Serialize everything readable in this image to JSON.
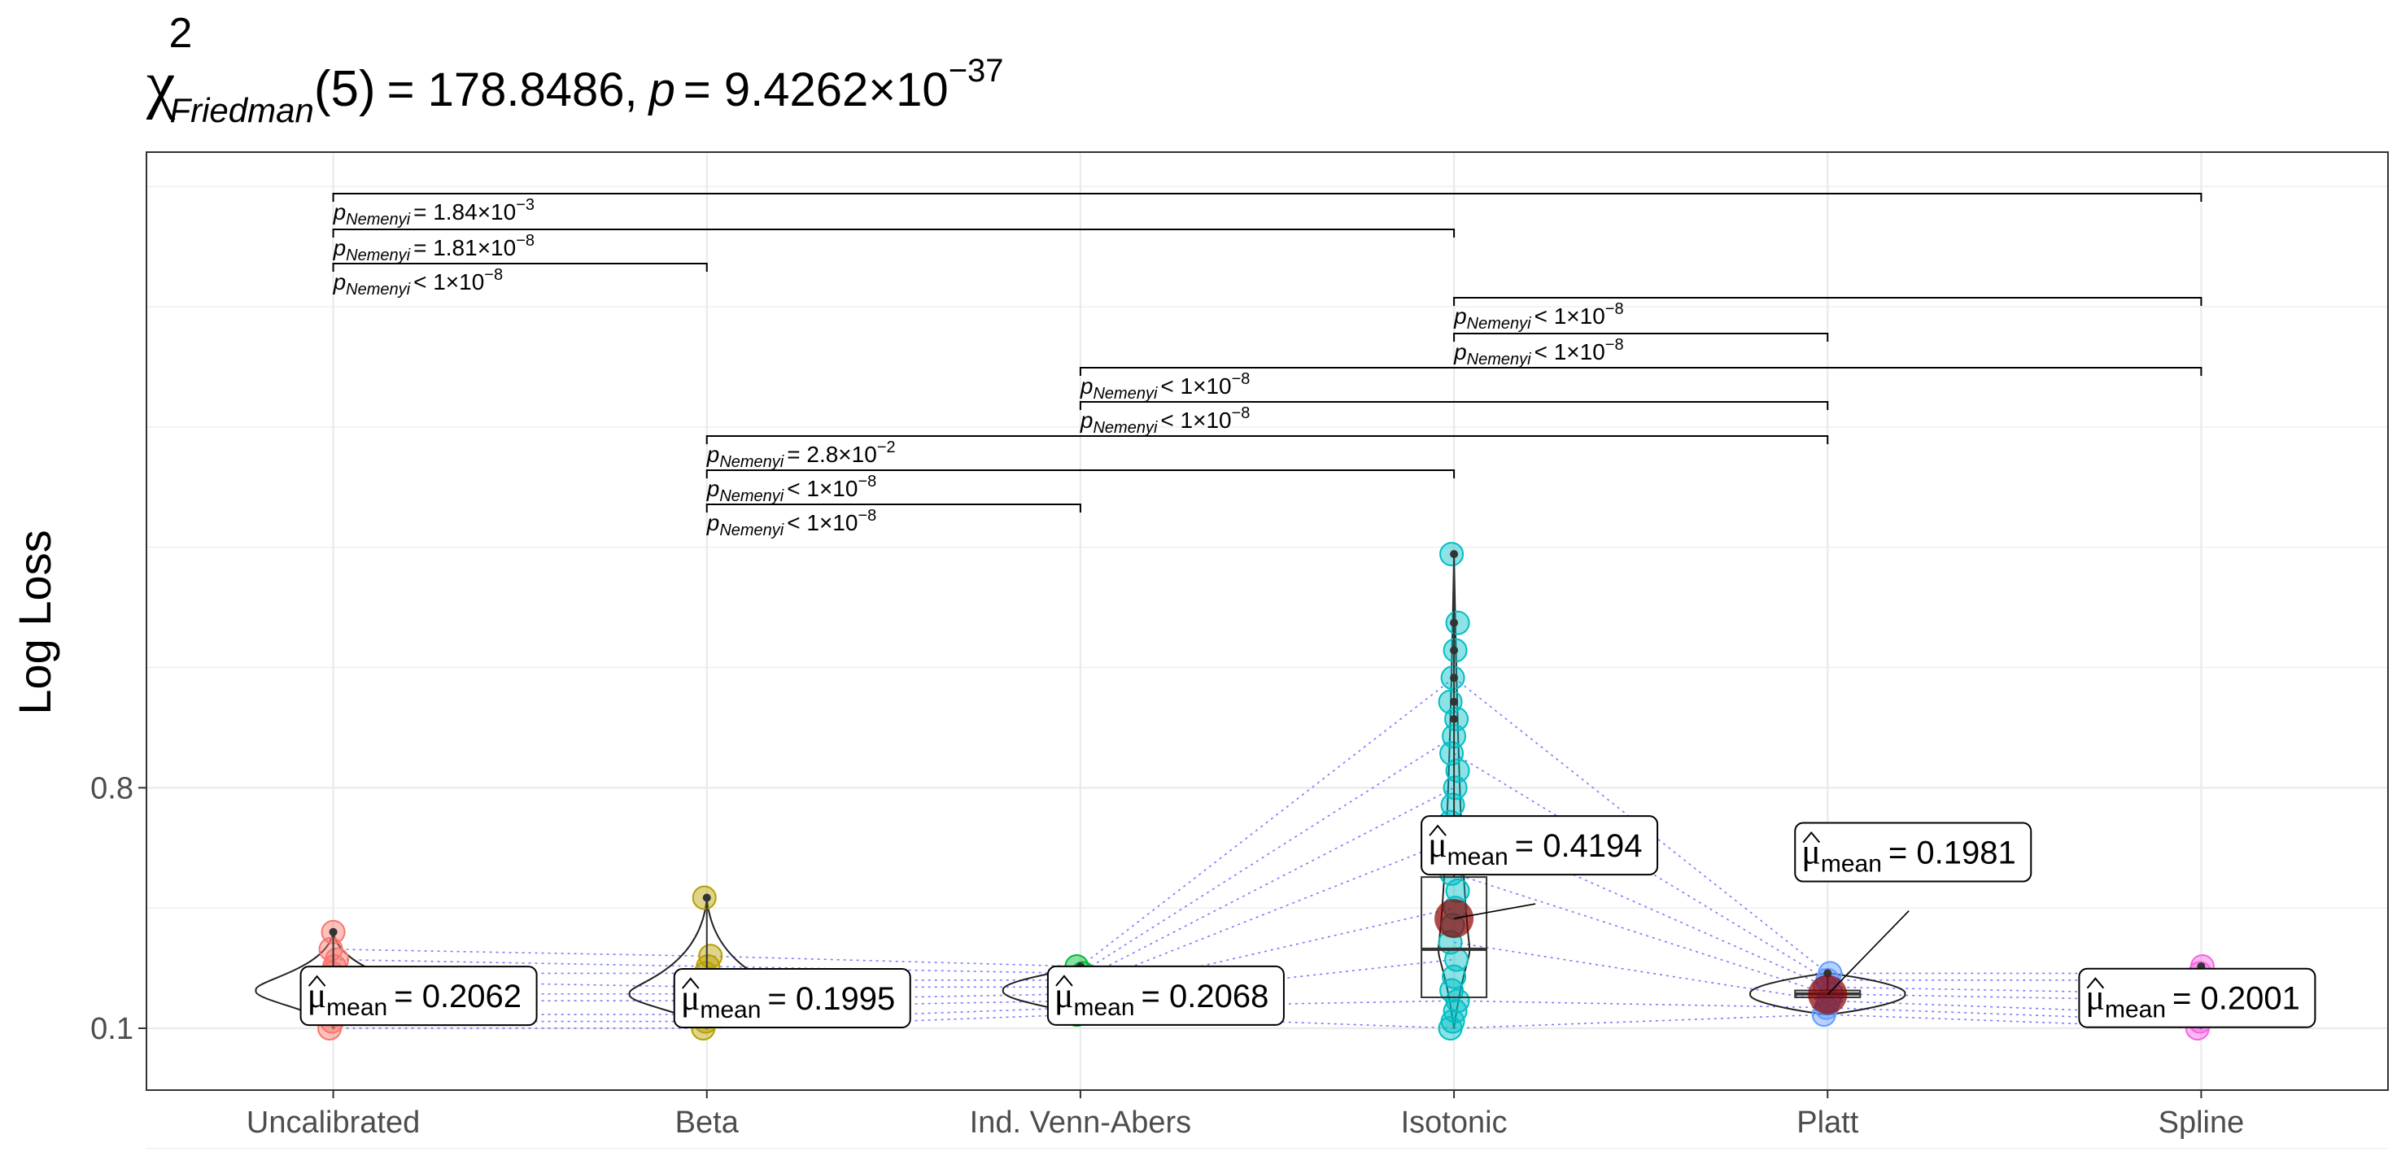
{
  "chart_data": {
    "type": "violin",
    "title": {
      "symbol": "χ",
      "sup": "2",
      "sub": "Friedman",
      "df": "(5)",
      "statistic": "= 178.8486,",
      "p_label": "p",
      "p_value": "= 9.4262×10",
      "p_exp": "−37"
    },
    "ylabel": "Log Loss",
    "ylim": [
      -0.08,
      2.65
    ],
    "yticks": [
      {
        "value": 0.1,
        "label": "0.1"
      },
      {
        "value": 0.8,
        "label": "0.8"
      }
    ],
    "categories": [
      "Uncalibrated",
      "Beta",
      "Ind. Venn-Abers",
      "Isotonic",
      "Platt",
      "Spline"
    ],
    "colors": {
      "Uncalibrated": "#F8766D",
      "Beta": "#B79F00",
      "Ind. Venn-Abers": "#00BA38",
      "Isotonic": "#00BFC4",
      "Platt": "#619CFF",
      "Spline": "#F564E3"
    },
    "groups": [
      {
        "name": "Uncalibrated",
        "points": [
          0.1,
          0.12,
          0.14,
          0.16,
          0.18,
          0.2,
          0.22,
          0.24,
          0.26,
          0.28,
          0.3,
          0.33,
          0.38
        ],
        "mean": 0.2062,
        "mean_label": "= 0.2062",
        "median": 0.21,
        "q1": 0.18,
        "q3": 0.24
      },
      {
        "name": "Beta",
        "points": [
          0.1,
          0.12,
          0.14,
          0.16,
          0.18,
          0.2,
          0.22,
          0.24,
          0.26,
          0.28,
          0.31,
          0.48
        ],
        "mean": 0.1995,
        "mean_label": "= 0.1995",
        "median": 0.2,
        "q1": 0.17,
        "q3": 0.23
      },
      {
        "name": "Ind. Venn-Abers",
        "points": [
          0.14,
          0.16,
          0.18,
          0.2,
          0.22,
          0.24,
          0.26,
          0.28
        ],
        "mean": 0.2068,
        "mean_label": "= 0.2068",
        "median": 0.21,
        "q1": 0.19,
        "q3": 0.23
      },
      {
        "name": "Isotonic",
        "points": [
          0.1,
          0.12,
          0.15,
          0.18,
          0.21,
          0.25,
          0.3,
          0.35,
          0.4,
          0.45,
          0.5,
          0.55,
          0.6,
          0.65,
          0.7,
          0.75,
          0.8,
          0.85,
          0.9,
          0.95,
          1.0,
          1.05,
          1.12,
          1.2,
          1.28,
          1.48
        ],
        "mean": 0.4194,
        "mean_label": "= 0.4194",
        "median": 0.33,
        "q1": 0.19,
        "q3": 0.54
      },
      {
        "name": "Platt",
        "points": [
          0.14,
          0.16,
          0.18,
          0.2,
          0.22,
          0.24,
          0.26
        ],
        "mean": 0.1981,
        "mean_label": "= 0.1981",
        "median": 0.2,
        "q1": 0.19,
        "q3": 0.21
      },
      {
        "name": "Spline",
        "points": [
          0.1,
          0.12,
          0.14,
          0.16,
          0.18,
          0.2,
          0.22,
          0.24,
          0.26,
          0.28
        ],
        "mean": 0.2001,
        "mean_label": "= 0.2001",
        "median": 0.2,
        "q1": 0.18,
        "q3": 0.23
      }
    ],
    "mean_symbol": "μ",
    "mean_sub": "mean",
    "pairwise": [
      {
        "from": "Uncalibrated",
        "to": "Spline",
        "p_label": "= 1.84×10",
        "p_exp": "−3"
      },
      {
        "from": "Uncalibrated",
        "to": "Isotonic",
        "p_label": "= 1.81×10",
        "p_exp": "−8"
      },
      {
        "from": "Uncalibrated",
        "to": "Beta",
        "p_label": "< 1×10",
        "p_exp": "−8"
      },
      {
        "from": "Isotonic",
        "to": "Spline",
        "p_label": "< 1×10",
        "p_exp": "−8"
      },
      {
        "from": "Isotonic",
        "to": "Platt",
        "p_label": "< 1×10",
        "p_exp": "−8"
      },
      {
        "from": "Ind. Venn-Abers",
        "to": "Spline",
        "p_label": "< 1×10",
        "p_exp": "−8"
      },
      {
        "from": "Ind. Venn-Abers",
        "to": "Platt",
        "p_label": "< 1×10",
        "p_exp": "−8"
      },
      {
        "from": "Beta",
        "to": "Platt",
        "p_label": "= 2.8×10",
        "p_exp": "−2"
      },
      {
        "from": "Beta",
        "to": "Isotonic",
        "p_label": "< 1×10",
        "p_exp": "−8"
      },
      {
        "from": "Beta",
        "to": "Ind. Venn-Abers",
        "p_label": "< 1×10",
        "p_exp": "−8"
      }
    ],
    "p_symbol": "p",
    "p_sub": "Nemenyi",
    "grid": true
  }
}
